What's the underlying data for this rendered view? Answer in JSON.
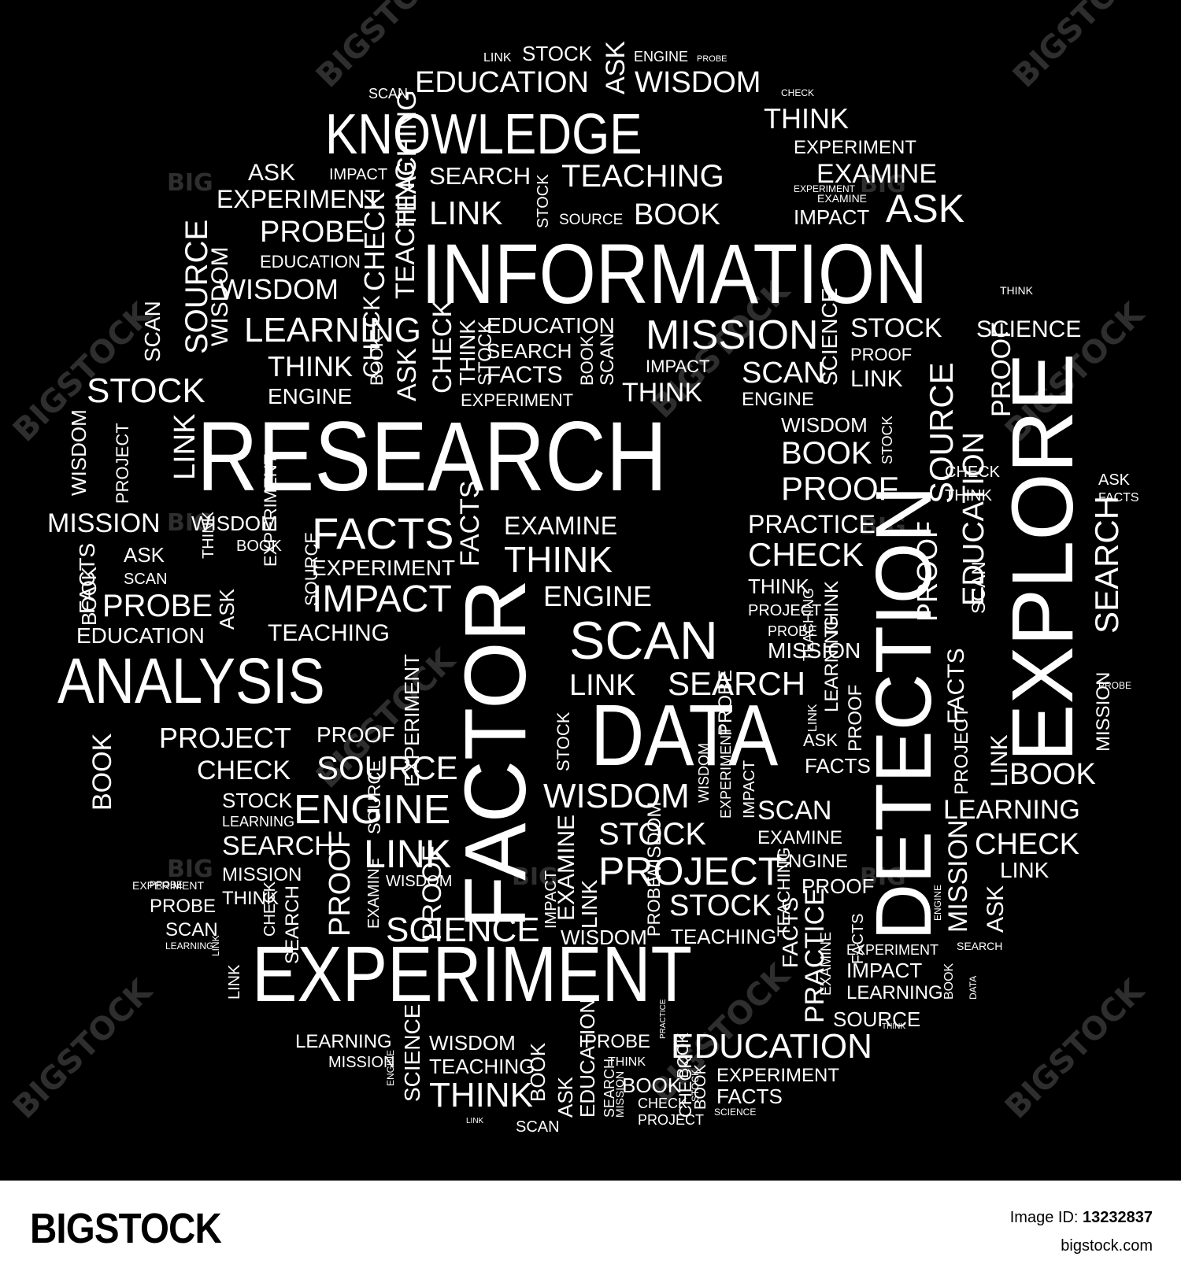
{
  "cloud": {
    "words": [
      {
        "id": "information",
        "text": "INFORMATION"
      },
      {
        "id": "research",
        "text": "RESEARCH"
      },
      {
        "id": "experiment-big",
        "text": "EXPERIMENT"
      },
      {
        "id": "knowledge",
        "text": "KNOWLEDGE"
      },
      {
        "id": "analysis",
        "text": "ANALYSIS"
      },
      {
        "id": "data",
        "text": "DATA"
      },
      {
        "id": "factor",
        "text": "FACTOR"
      },
      {
        "id": "detection",
        "text": "DETECTION"
      },
      {
        "id": "explore",
        "text": "EXPLORE"
      },
      {
        "id": "education-top",
        "text": "EDUCATION"
      },
      {
        "id": "wisdom-top",
        "text": "WISDOM"
      },
      {
        "id": "stock-top",
        "text": "STOCK"
      },
      {
        "id": "link-top",
        "text": "LINK"
      },
      {
        "id": "engine-top",
        "text": "ENGINE"
      },
      {
        "id": "probe-top",
        "text": "PROBE"
      },
      {
        "id": "scan-top",
        "text": "SCAN"
      },
      {
        "id": "check-top",
        "text": "CHECK"
      },
      {
        "id": "ask-top",
        "text": "ASK"
      },
      {
        "id": "think-top",
        "text": "THINK"
      },
      {
        "id": "experiment-top",
        "text": "EXPERIMENT"
      },
      {
        "id": "examine-top",
        "text": "EXAMINE"
      },
      {
        "id": "teaching-top",
        "text": "TEACHING"
      },
      {
        "id": "search-top",
        "text": "SEARCH"
      },
      {
        "id": "link-2",
        "text": "LINK"
      },
      {
        "id": "book-top",
        "text": "BOOK"
      },
      {
        "id": "ask-2",
        "text": "ASK"
      },
      {
        "id": "impact-top",
        "text": "IMPACT"
      },
      {
        "id": "source-top",
        "text": "SOURCE"
      },
      {
        "id": "experiment-left",
        "text": "EXPERIMENT"
      },
      {
        "id": "probe-left",
        "text": "PROBE"
      },
      {
        "id": "education-left",
        "text": "EDUCATION"
      },
      {
        "id": "wisdom-left",
        "text": "WISDOM"
      },
      {
        "id": "learning-left",
        "text": "LEARNING"
      },
      {
        "id": "think-left",
        "text": "THINK"
      },
      {
        "id": "engine-left",
        "text": "ENGINE"
      },
      {
        "id": "stock-left",
        "text": "STOCK"
      },
      {
        "id": "education-mid",
        "text": "EDUCATION"
      },
      {
        "id": "search-mid",
        "text": "SEARCH"
      },
      {
        "id": "facts-mid",
        "text": "FACTS"
      },
      {
        "id": "experiment-mid",
        "text": "EXPERIMENT"
      },
      {
        "id": "mission-top",
        "text": "MISSION"
      },
      {
        "id": "impact-mid",
        "text": "IMPACT"
      },
      {
        "id": "think-mid",
        "text": "THINK"
      },
      {
        "id": "scan-mid",
        "text": "SCAN"
      },
      {
        "id": "engine-mid",
        "text": "ENGINE"
      },
      {
        "id": "stock-right",
        "text": "STOCK"
      },
      {
        "id": "proof-right",
        "text": "PROOF"
      },
      {
        "id": "link-right",
        "text": "LINK"
      },
      {
        "id": "science-right",
        "text": "SCIENCE"
      },
      {
        "id": "wisdom-right",
        "text": "WISDOM"
      },
      {
        "id": "book-right",
        "text": "BOOK"
      },
      {
        "id": "proof-right2",
        "text": "PROOF"
      },
      {
        "id": "check-right",
        "text": "CHECK"
      },
      {
        "id": "think-right",
        "text": "THINK"
      },
      {
        "id": "ask-right",
        "text": "ASK"
      },
      {
        "id": "facts-right",
        "text": "FACTS"
      },
      {
        "id": "mission-left",
        "text": "MISSION"
      },
      {
        "id": "wisdom-l2",
        "text": "WISDOM"
      },
      {
        "id": "book-l2",
        "text": "BOOK"
      },
      {
        "id": "facts-l2",
        "text": "FACTS"
      },
      {
        "id": "experiment-l2",
        "text": "EXPERIMENT"
      },
      {
        "id": "impact-l2",
        "text": "IMPACT"
      },
      {
        "id": "examine-mid",
        "text": "EXAMINE"
      },
      {
        "id": "think-mid2",
        "text": "THINK"
      },
      {
        "id": "engine-mid2",
        "text": "ENGINE"
      },
      {
        "id": "practice-right",
        "text": "PRACTICE"
      },
      {
        "id": "check-right2",
        "text": "CHECK"
      },
      {
        "id": "think-right2",
        "text": "THINK"
      },
      {
        "id": "project-right",
        "text": "PROJECT"
      },
      {
        "id": "probe-right",
        "text": "PROBE"
      },
      {
        "id": "mission-right",
        "text": "MISSION"
      },
      {
        "id": "ask-l3",
        "text": "ASK"
      },
      {
        "id": "scan-l3",
        "text": "SCAN"
      },
      {
        "id": "probe-l3",
        "text": "PROBE"
      },
      {
        "id": "education-l3",
        "text": "EDUCATION"
      },
      {
        "id": "teaching-l3",
        "text": "TEACHING"
      },
      {
        "id": "scan-big",
        "text": "SCAN"
      },
      {
        "id": "link-mid",
        "text": "LINK"
      },
      {
        "id": "search-mid2",
        "text": "SEARCH"
      },
      {
        "id": "project-l4",
        "text": "PROJECT"
      },
      {
        "id": "proof-l4",
        "text": "PROOF"
      },
      {
        "id": "check-l4",
        "text": "CHECK"
      },
      {
        "id": "source-l4",
        "text": "SOURCE"
      },
      {
        "id": "stock-l4",
        "text": "STOCK"
      },
      {
        "id": "learning-l4",
        "text": "LEARNING"
      },
      {
        "id": "engine-l4",
        "text": "ENGINE"
      },
      {
        "id": "search-l4",
        "text": "SEARCH"
      },
      {
        "id": "link-l4",
        "text": "LINK"
      },
      {
        "id": "mission-l4",
        "text": "MISSION"
      },
      {
        "id": "think-l4",
        "text": "THINK"
      },
      {
        "id": "probe-l4",
        "text": "PROBE"
      },
      {
        "id": "scan-l4",
        "text": "SCAN"
      },
      {
        "id": "experiment-l4",
        "text": "EXPERIMENT"
      },
      {
        "id": "wisdom-mid",
        "text": "WISDOM"
      },
      {
        "id": "stock-mid",
        "text": "STOCK"
      },
      {
        "id": "project-mid",
        "text": "PROJECT"
      },
      {
        "id": "stock-mid2",
        "text": "STOCK"
      },
      {
        "id": "teaching-mid",
        "text": "TEACHING"
      },
      {
        "id": "wisdom-mid2",
        "text": "WISDOM"
      },
      {
        "id": "science-mid",
        "text": "SCIENCE"
      },
      {
        "id": "wisdom-mid3",
        "text": "WISDOM"
      },
      {
        "id": "scan-r3",
        "text": "SCAN"
      },
      {
        "id": "examine-r3",
        "text": "EXAMINE"
      },
      {
        "id": "engine-r3",
        "text": "ENGINE"
      },
      {
        "id": "proof-r3",
        "text": "PROOF"
      },
      {
        "id": "ask-r3",
        "text": "ASK"
      },
      {
        "id": "facts-r3",
        "text": "FACTS"
      },
      {
        "id": "book-r4",
        "text": "BOOK"
      },
      {
        "id": "learning-r4",
        "text": "LEARNING"
      },
      {
        "id": "check-r4",
        "text": "CHECK"
      },
      {
        "id": "link-r4",
        "text": "LINK"
      },
      {
        "id": "experiment-r4",
        "text": "EXPERIMENT"
      },
      {
        "id": "impact-r4",
        "text": "IMPACT"
      },
      {
        "id": "learning-r5",
        "text": "LEARNING"
      },
      {
        "id": "source-r5",
        "text": "SOURCE"
      },
      {
        "id": "education-bot",
        "text": "EDUCATION"
      },
      {
        "id": "experiment-bot",
        "text": "EXPERIMENT"
      },
      {
        "id": "facts-bot",
        "text": "FACTS"
      },
      {
        "id": "learning-bot",
        "text": "LEARNING"
      },
      {
        "id": "wisdom-bot",
        "text": "WISDOM"
      },
      {
        "id": "probe-bot",
        "text": "PROBE"
      },
      {
        "id": "mission-bot",
        "text": "MISSION"
      },
      {
        "id": "teaching-bot",
        "text": "TEACHING"
      },
      {
        "id": "think-bot",
        "text": "THINK"
      },
      {
        "id": "think-bot2",
        "text": "THINK"
      },
      {
        "id": "book-bot",
        "text": "BOOK"
      },
      {
        "id": "check-bot",
        "text": "CHECK"
      },
      {
        "id": "project-bot",
        "text": "PROJECT"
      },
      {
        "id": "scan-bot",
        "text": "SCAN"
      },
      {
        "id": "science-bot",
        "text": "SCIENCE"
      },
      {
        "id": "science-r1",
        "text": "SCIENCE"
      },
      {
        "id": "stock-r1",
        "text": "STOCK"
      },
      {
        "id": "proof-r1",
        "text": "PROOF"
      },
      {
        "id": "link-r1",
        "text": "LINK"
      },
      {
        "id": "teaching-r1",
        "text": "TEACHING"
      },
      {
        "id": "stock-l0",
        "text": "STOCK"
      },
      {
        "id": "think-top2",
        "text": "THINK"
      },
      {
        "id": "experiment-top2",
        "text": "EXPERIMENT"
      },
      {
        "id": "examine-top2",
        "text": "EXAMINE"
      },
      {
        "id": "ask-top3",
        "text": "ASK"
      },
      {
        "id": "impact-top2",
        "text": "IMPACT"
      },
      {
        "id": "facts-l0",
        "text": "FACTS"
      },
      {
        "id": "book-l0",
        "text": "BOOK"
      },
      {
        "id": "wisdom-l0",
        "text": "WISDOM"
      },
      {
        "id": "project-l0",
        "text": "PROJECT"
      },
      {
        "id": "link-bot",
        "text": "LINK"
      },
      {
        "id": "search-r5",
        "text": "SEARCH"
      },
      {
        "id": "probe-r5",
        "text": "PROBE"
      },
      {
        "id": "think-r5",
        "text": "THINK"
      },
      {
        "id": "search-r6",
        "text": "SEARCH"
      },
      {
        "id": "scan-l5",
        "text": "SCAN"
      },
      {
        "id": "experiment-l5",
        "text": "EXPERIMENT"
      },
      {
        "id": "probe-l5",
        "text": "PROBE"
      },
      {
        "id": "learning-l5",
        "text": "LEARNING"
      },
      {
        "id": "wisdom-l5",
        "text": "WISDOM"
      },
      {
        "id": "source-l6",
        "text": "SOURCE"
      },
      {
        "id": "check-l6",
        "text": "CHECK"
      },
      {
        "id": "ask-l6",
        "text": "ASK"
      },
      {
        "id": "proof-l6",
        "text": "PROOF"
      },
      {
        "id": "book-l6",
        "text": "BOOK"
      },
      {
        "id": "link-l6",
        "text": "LINK"
      },
      {
        "id": "check-l7",
        "text": "CHECK"
      },
      {
        "id": "teaching-l7",
        "text": "TEACHING"
      },
      {
        "id": "proof-l7",
        "text": "PROOF"
      },
      {
        "id": "check-l8",
        "text": "CHECK"
      },
      {
        "id": "teaching-l8",
        "text": "TEACHING"
      },
      {
        "id": "search-l8",
        "text": "SEARCH"
      },
      {
        "id": "source-l8",
        "text": "SOURCE"
      },
      {
        "id": "think-l8",
        "text": "THINK"
      },
      {
        "id": "ask-l8",
        "text": "ASK"
      },
      {
        "id": "check-l9",
        "text": "CHECK"
      },
      {
        "id": "facts-l9",
        "text": "FACTS"
      },
      {
        "id": "think-l9",
        "text": "THINK"
      },
      {
        "id": "book-l9",
        "text": "BOOK"
      },
      {
        "id": "stock-l9",
        "text": "STOCK"
      },
      {
        "id": "source-l9",
        "text": "SOURCE"
      },
      {
        "id": "experiment-r2",
        "text": "EXPERIMENT"
      },
      {
        "id": "scan-r2",
        "text": "SCAN"
      },
      {
        "id": "book-r2",
        "text": "BOOK"
      },
      {
        "id": "probe-r2",
        "text": "PROBE"
      },
      {
        "id": "proof-r2",
        "text": "PROOF"
      },
      {
        "id": "education-r2",
        "text": "EDUCATION"
      },
      {
        "id": "scan-r6",
        "text": "SCAN"
      },
      {
        "id": "source-r6",
        "text": "SOURCE"
      },
      {
        "id": "facts-r6",
        "text": "FACTS"
      },
      {
        "id": "proof-r6",
        "text": "PROOF"
      },
      {
        "id": "learning-r6",
        "text": "LEARNING"
      },
      {
        "id": "think-r6",
        "text": "THINK"
      },
      {
        "id": "link-r6",
        "text": "LINK"
      },
      {
        "id": "facts-r7",
        "text": "FACTS"
      },
      {
        "id": "project-r7",
        "text": "PROJECT"
      },
      {
        "id": "mission-r7",
        "text": "MISSION"
      },
      {
        "id": "ask-r7",
        "text": "ASK"
      },
      {
        "id": "examine-r7",
        "text": "EXAMINE"
      },
      {
        "id": "book-r7",
        "text": "BOOK"
      },
      {
        "id": "data-r7",
        "text": "DATA"
      },
      {
        "id": "mission-b2",
        "text": "MISSION"
      },
      {
        "id": "practice-b2",
        "text": "PRACTICE"
      },
      {
        "id": "facts-b2",
        "text": "FACTS"
      },
      {
        "id": "teaching-b2",
        "text": "TEACHING"
      },
      {
        "id": "stock-b2",
        "text": "STOCK"
      },
      {
        "id": "book-b2",
        "text": "BOOK"
      },
      {
        "id": "probe-b2",
        "text": "PROBE"
      },
      {
        "id": "wisdom-b2",
        "text": "WISDOM"
      },
      {
        "id": "impact-b2",
        "text": "IMPACT"
      },
      {
        "id": "examine-b2",
        "text": "EXAMINE"
      },
      {
        "id": "link-b2",
        "text": "LINK"
      },
      {
        "id": "impact-b3",
        "text": "IMPACT"
      },
      {
        "id": "examine-b3",
        "text": "EXAMINE"
      },
      {
        "id": "experiment-b3",
        "text": "EXPERIMENT"
      },
      {
        "id": "wisdom-b3",
        "text": "WISDOM"
      },
      {
        "id": "science-b3",
        "text": "SCIENCE"
      },
      {
        "id": "book-b4",
        "text": "BOOK"
      },
      {
        "id": "ask-b4",
        "text": "ASK"
      },
      {
        "id": "education-b4",
        "text": "EDUCATION"
      },
      {
        "id": "search-b4",
        "text": "SEARCH"
      },
      {
        "id": "practice-b4",
        "text": "PRACTICE"
      },
      {
        "id": "engine-b4",
        "text": "ENGINE"
      },
      {
        "id": "book-b5",
        "text": "BOOK"
      },
      {
        "id": "mission-b5",
        "text": "MISSION"
      },
      {
        "id": "check-b5",
        "text": "CHECK"
      },
      {
        "id": "stock-b5",
        "text": "STOCK"
      },
      {
        "id": "link-b5",
        "text": "LINK"
      },
      {
        "id": "engine-b5",
        "text": "ENGINE"
      },
      {
        "id": "link-b6",
        "text": "LINK"
      },
      {
        "id": "probe-b6",
        "text": "PROBE"
      },
      {
        "id": "project-b6",
        "text": "PROJECT"
      }
    ],
    "watermark": "BIGSTOCK",
    "watermark_small": "BIG"
  },
  "footer": {
    "brand": "BIGSTOCK",
    "image_id_label": "Image ID:",
    "image_id_value": "13232837",
    "site": "bigstock.com"
  },
  "colors": {
    "background": "#000000",
    "text": "#ffffff",
    "footer_bg": "#ffffff",
    "footer_text": "#000000"
  }
}
